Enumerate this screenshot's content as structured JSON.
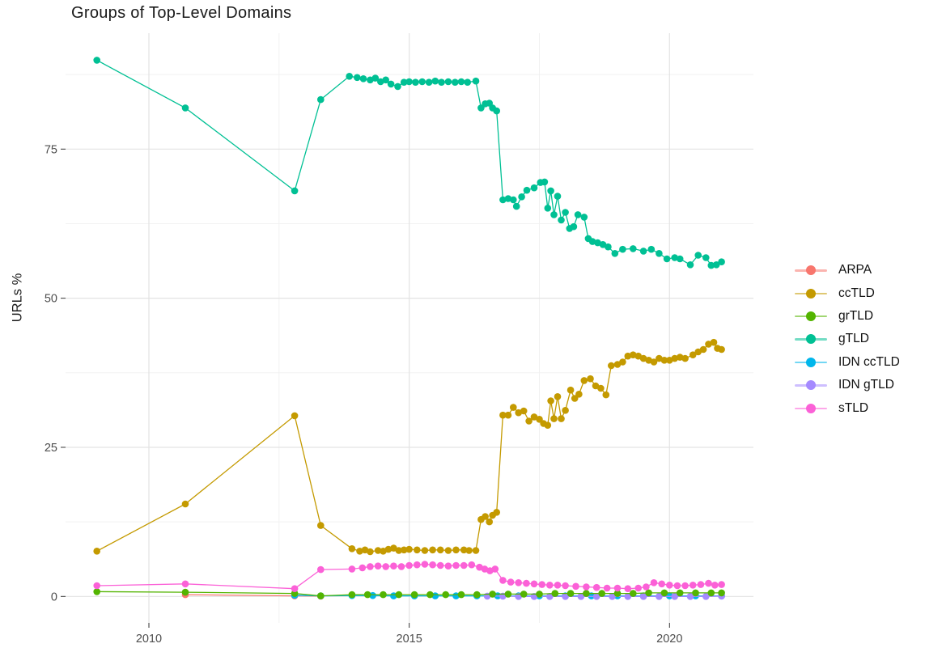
{
  "title": "Groups of Top-Level Domains",
  "axes": {
    "y_label": "URLs %",
    "y_ticks": [
      "0",
      "25",
      "50",
      "75"
    ],
    "y_tick_values": [
      0,
      25,
      50,
      75
    ],
    "y_minor_values": [
      12.5,
      37.5,
      62.5,
      87.5
    ],
    "x_ticks": [
      "2010",
      "2015",
      "2020"
    ],
    "x_tick_values": [
      2010,
      2015,
      2020
    ],
    "x_minor_values": [
      2012.5,
      2017.5
    ]
  },
  "colors": {
    "grid_major": "#e3e3e3",
    "grid_minor": "#f0f0f0",
    "tick_mark": "#333333",
    "tick_label": "#4d4d4d",
    "title_text": "#1a1a1a"
  },
  "legend": [
    {
      "label": "ARPA",
      "color": "#F8766D"
    },
    {
      "label": "ccTLD",
      "color": "#C49A00"
    },
    {
      "label": "grTLD",
      "color": "#53B400"
    },
    {
      "label": "gTLD",
      "color": "#00C094"
    },
    {
      "label": "IDN ccTLD",
      "color": "#00B6EB"
    },
    {
      "label": "IDN gTLD",
      "color": "#A58AFF"
    },
    {
      "label": "sTLD",
      "color": "#FB61D7"
    }
  ],
  "chart_data": {
    "type": "line",
    "title": "Groups of Top-Level Domains",
    "xlabel": "",
    "ylabel": "URLs %",
    "xlim": [
      2008.4,
      2021.6
    ],
    "ylim": [
      -4.5,
      94.4
    ],
    "x_ticks": [
      2010,
      2015,
      2020
    ],
    "y_ticks": [
      0,
      25,
      50,
      75
    ],
    "grid": true,
    "legend_position": "right",
    "marker": "point",
    "series": [
      {
        "name": "ARPA",
        "color": "#F8766D",
        "points": [
          [
            2010.7,
            0.3
          ],
          [
            2012.8,
            0.1
          ],
          [
            2013.3,
            0.05
          ]
        ]
      },
      {
        "name": "IDN ccTLD",
        "color": "#00B6EB",
        "points": [
          [
            2012.8,
            0.2
          ],
          [
            2013.3,
            0.1
          ],
          [
            2013.9,
            0.15
          ],
          [
            2014.3,
            0.15
          ],
          [
            2014.7,
            0.1
          ],
          [
            2015.1,
            0.1
          ],
          [
            2015.5,
            0.1
          ],
          [
            2015.9,
            0.1
          ],
          [
            2016.3,
            0.1
          ],
          [
            2016.7,
            0.1
          ],
          [
            2017.1,
            0.1
          ],
          [
            2017.5,
            0.1
          ],
          [
            2018.0,
            0.1
          ],
          [
            2018.5,
            0.1
          ],
          [
            2019.0,
            0.1
          ],
          [
            2019.5,
            0.1
          ],
          [
            2020.0,
            0.1
          ],
          [
            2020.5,
            0.1
          ],
          [
            2021.0,
            0.1
          ]
        ]
      },
      {
        "name": "IDN gTLD",
        "color": "#A58AFF",
        "points": [
          [
            2016.5,
            0.05
          ],
          [
            2016.8,
            0.05
          ],
          [
            2017.1,
            0.0
          ],
          [
            2017.4,
            0.0
          ],
          [
            2017.7,
            0.0
          ],
          [
            2018.0,
            0.0
          ],
          [
            2018.3,
            0.0
          ],
          [
            2018.6,
            0.0
          ],
          [
            2018.9,
            0.0
          ],
          [
            2019.2,
            0.0
          ],
          [
            2019.5,
            0.0
          ],
          [
            2019.8,
            0.0
          ],
          [
            2020.1,
            0.0
          ],
          [
            2020.4,
            0.0
          ],
          [
            2020.7,
            0.0
          ],
          [
            2021.0,
            0.05
          ]
        ]
      },
      {
        "name": "grTLD",
        "color": "#53B400",
        "points": [
          [
            2009.0,
            0.8
          ],
          [
            2010.7,
            0.7
          ],
          [
            2012.8,
            0.5
          ],
          [
            2013.3,
            0.1
          ],
          [
            2013.9,
            0.3
          ],
          [
            2014.2,
            0.3
          ],
          [
            2014.5,
            0.3
          ],
          [
            2014.8,
            0.3
          ],
          [
            2015.1,
            0.3
          ],
          [
            2015.4,
            0.3
          ],
          [
            2015.7,
            0.3
          ],
          [
            2016.0,
            0.3
          ],
          [
            2016.3,
            0.3
          ],
          [
            2016.6,
            0.4
          ],
          [
            2016.9,
            0.4
          ],
          [
            2017.2,
            0.4
          ],
          [
            2017.5,
            0.4
          ],
          [
            2017.8,
            0.5
          ],
          [
            2018.1,
            0.5
          ],
          [
            2018.4,
            0.5
          ],
          [
            2018.7,
            0.5
          ],
          [
            2019.0,
            0.5
          ],
          [
            2019.3,
            0.5
          ],
          [
            2019.6,
            0.6
          ],
          [
            2019.9,
            0.6
          ],
          [
            2020.2,
            0.6
          ],
          [
            2020.5,
            0.6
          ],
          [
            2020.8,
            0.6
          ],
          [
            2021.0,
            0.6
          ]
        ]
      },
      {
        "name": "sTLD",
        "color": "#FB61D7",
        "points": [
          [
            2009.0,
            1.8
          ],
          [
            2010.7,
            2.1
          ],
          [
            2012.8,
            1.3
          ],
          [
            2013.3,
            4.5
          ],
          [
            2013.9,
            4.6
          ],
          [
            2014.1,
            4.8
          ],
          [
            2014.25,
            5.0
          ],
          [
            2014.4,
            5.1
          ],
          [
            2014.55,
            5.0
          ],
          [
            2014.7,
            5.1
          ],
          [
            2014.85,
            5.0
          ],
          [
            2015.0,
            5.2
          ],
          [
            2015.15,
            5.3
          ],
          [
            2015.3,
            5.4
          ],
          [
            2015.45,
            5.3
          ],
          [
            2015.6,
            5.2
          ],
          [
            2015.75,
            5.1
          ],
          [
            2015.9,
            5.2
          ],
          [
            2016.05,
            5.2
          ],
          [
            2016.2,
            5.3
          ],
          [
            2016.35,
            4.9
          ],
          [
            2016.45,
            4.6
          ],
          [
            2016.55,
            4.3
          ],
          [
            2016.65,
            4.6
          ],
          [
            2016.8,
            2.7
          ],
          [
            2016.95,
            2.4
          ],
          [
            2017.1,
            2.3
          ],
          [
            2017.25,
            2.2
          ],
          [
            2017.4,
            2.1
          ],
          [
            2017.55,
            2.0
          ],
          [
            2017.7,
            1.9
          ],
          [
            2017.85,
            1.9
          ],
          [
            2018.0,
            1.8
          ],
          [
            2018.2,
            1.7
          ],
          [
            2018.4,
            1.6
          ],
          [
            2018.6,
            1.5
          ],
          [
            2018.8,
            1.4
          ],
          [
            2019.0,
            1.4
          ],
          [
            2019.2,
            1.3
          ],
          [
            2019.4,
            1.4
          ],
          [
            2019.55,
            1.6
          ],
          [
            2019.7,
            2.3
          ],
          [
            2019.85,
            2.1
          ],
          [
            2020.0,
            1.9
          ],
          [
            2020.15,
            1.8
          ],
          [
            2020.3,
            1.8
          ],
          [
            2020.45,
            1.9
          ],
          [
            2020.6,
            2.0
          ],
          [
            2020.75,
            2.2
          ],
          [
            2020.87,
            1.9
          ],
          [
            2021.0,
            2.0
          ]
        ]
      },
      {
        "name": "ccTLD",
        "color": "#C49A00",
        "points": [
          [
            2009.0,
            7.6
          ],
          [
            2010.7,
            15.5
          ],
          [
            2012.8,
            30.3
          ],
          [
            2013.3,
            11.9
          ],
          [
            2013.9,
            8.0
          ],
          [
            2014.05,
            7.6
          ],
          [
            2014.15,
            7.8
          ],
          [
            2014.25,
            7.5
          ],
          [
            2014.4,
            7.7
          ],
          [
            2014.5,
            7.6
          ],
          [
            2014.6,
            7.9
          ],
          [
            2014.7,
            8.1
          ],
          [
            2014.8,
            7.7
          ],
          [
            2014.9,
            7.8
          ],
          [
            2015.0,
            7.9
          ],
          [
            2015.15,
            7.8
          ],
          [
            2015.3,
            7.7
          ],
          [
            2015.45,
            7.8
          ],
          [
            2015.6,
            7.8
          ],
          [
            2015.75,
            7.7
          ],
          [
            2015.9,
            7.8
          ],
          [
            2016.05,
            7.8
          ],
          [
            2016.15,
            7.7
          ],
          [
            2016.28,
            7.7
          ],
          [
            2016.38,
            12.9
          ],
          [
            2016.46,
            13.4
          ],
          [
            2016.54,
            12.5
          ],
          [
            2016.6,
            13.6
          ],
          [
            2016.68,
            14.1
          ],
          [
            2016.8,
            30.4
          ],
          [
            2016.9,
            30.4
          ],
          [
            2017.0,
            31.7
          ],
          [
            2017.1,
            30.8
          ],
          [
            2017.2,
            31.1
          ],
          [
            2017.3,
            29.4
          ],
          [
            2017.4,
            30.1
          ],
          [
            2017.5,
            29.7
          ],
          [
            2017.58,
            29.0
          ],
          [
            2017.66,
            28.7
          ],
          [
            2017.72,
            32.8
          ],
          [
            2017.78,
            29.8
          ],
          [
            2017.85,
            33.5
          ],
          [
            2017.92,
            29.8
          ],
          [
            2018.0,
            31.2
          ],
          [
            2018.1,
            34.6
          ],
          [
            2018.18,
            33.2
          ],
          [
            2018.26,
            33.9
          ],
          [
            2018.36,
            36.2
          ],
          [
            2018.48,
            36.5
          ],
          [
            2018.58,
            35.3
          ],
          [
            2018.68,
            34.9
          ],
          [
            2018.78,
            33.8
          ],
          [
            2018.88,
            38.7
          ],
          [
            2019.0,
            38.9
          ],
          [
            2019.1,
            39.3
          ],
          [
            2019.2,
            40.3
          ],
          [
            2019.3,
            40.5
          ],
          [
            2019.4,
            40.3
          ],
          [
            2019.5,
            39.9
          ],
          [
            2019.6,
            39.6
          ],
          [
            2019.7,
            39.3
          ],
          [
            2019.8,
            39.9
          ],
          [
            2019.9,
            39.6
          ],
          [
            2020.0,
            39.6
          ],
          [
            2020.1,
            39.9
          ],
          [
            2020.2,
            40.1
          ],
          [
            2020.3,
            39.9
          ],
          [
            2020.45,
            40.5
          ],
          [
            2020.55,
            41.0
          ],
          [
            2020.65,
            41.4
          ],
          [
            2020.75,
            42.3
          ],
          [
            2020.85,
            42.6
          ],
          [
            2020.92,
            41.6
          ],
          [
            2021.0,
            41.4
          ]
        ]
      },
      {
        "name": "gTLD",
        "color": "#00C094",
        "points": [
          [
            2009.0,
            89.9
          ],
          [
            2010.7,
            81.9
          ],
          [
            2012.8,
            68.0
          ],
          [
            2013.3,
            83.3
          ],
          [
            2013.85,
            87.2
          ],
          [
            2014.0,
            87.0
          ],
          [
            2014.12,
            86.8
          ],
          [
            2014.25,
            86.6
          ],
          [
            2014.35,
            86.9
          ],
          [
            2014.45,
            86.3
          ],
          [
            2014.55,
            86.6
          ],
          [
            2014.65,
            85.9
          ],
          [
            2014.78,
            85.5
          ],
          [
            2014.9,
            86.2
          ],
          [
            2015.0,
            86.3
          ],
          [
            2015.12,
            86.2
          ],
          [
            2015.25,
            86.3
          ],
          [
            2015.38,
            86.2
          ],
          [
            2015.5,
            86.4
          ],
          [
            2015.62,
            86.2
          ],
          [
            2015.75,
            86.3
          ],
          [
            2015.88,
            86.2
          ],
          [
            2016.0,
            86.3
          ],
          [
            2016.12,
            86.2
          ],
          [
            2016.28,
            86.4
          ],
          [
            2016.38,
            81.9
          ],
          [
            2016.46,
            82.6
          ],
          [
            2016.54,
            82.7
          ],
          [
            2016.6,
            81.9
          ],
          [
            2016.68,
            81.4
          ],
          [
            2016.8,
            66.5
          ],
          [
            2016.9,
            66.7
          ],
          [
            2017.0,
            66.5
          ],
          [
            2017.06,
            65.4
          ],
          [
            2017.16,
            67.0
          ],
          [
            2017.26,
            68.1
          ],
          [
            2017.4,
            68.5
          ],
          [
            2017.52,
            69.4
          ],
          [
            2017.6,
            69.5
          ],
          [
            2017.66,
            65.1
          ],
          [
            2017.72,
            68.0
          ],
          [
            2017.78,
            64.0
          ],
          [
            2017.85,
            67.1
          ],
          [
            2017.92,
            63.1
          ],
          [
            2018.0,
            64.4
          ],
          [
            2018.08,
            61.7
          ],
          [
            2018.16,
            62.0
          ],
          [
            2018.24,
            64.0
          ],
          [
            2018.36,
            63.6
          ],
          [
            2018.44,
            60.0
          ],
          [
            2018.52,
            59.5
          ],
          [
            2018.62,
            59.3
          ],
          [
            2018.72,
            59.0
          ],
          [
            2018.82,
            58.6
          ],
          [
            2018.95,
            57.5
          ],
          [
            2019.1,
            58.2
          ],
          [
            2019.3,
            58.3
          ],
          [
            2019.5,
            57.9
          ],
          [
            2019.65,
            58.2
          ],
          [
            2019.8,
            57.5
          ],
          [
            2019.95,
            56.6
          ],
          [
            2020.1,
            56.8
          ],
          [
            2020.2,
            56.6
          ],
          [
            2020.4,
            55.6
          ],
          [
            2020.55,
            57.2
          ],
          [
            2020.7,
            56.8
          ],
          [
            2020.8,
            55.5
          ],
          [
            2020.9,
            55.6
          ],
          [
            2021.0,
            56.1
          ]
        ]
      }
    ]
  }
}
